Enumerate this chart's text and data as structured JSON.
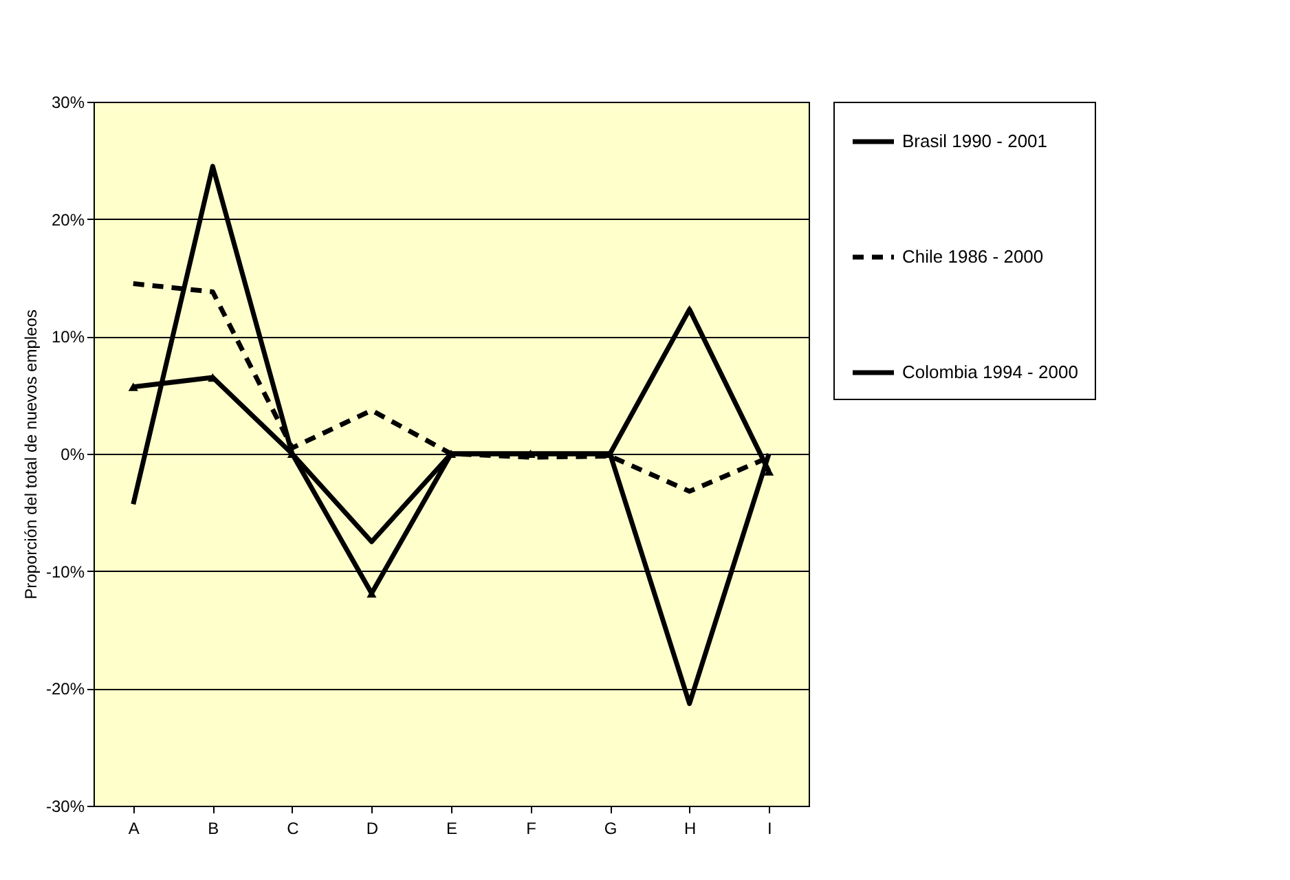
{
  "chart_data": {
    "type": "line",
    "ylabel": "Proporción del total de nuevos empleos",
    "categories": [
      "A",
      "B",
      "C",
      "D",
      "E",
      "F",
      "G",
      "H",
      "I"
    ],
    "series": [
      {
        "name": "Brasil 1990 - 2001",
        "color": "#000000",
        "line_style": "solid",
        "marker": "none",
        "values": [
          -4.3,
          24.5,
          0,
          -7.5,
          0,
          0,
          0,
          -21.3,
          0
        ]
      },
      {
        "name": "Chile 1986 - 2000",
        "color": "#000000",
        "line_style": "dashed",
        "marker": "none",
        "values": [
          14.5,
          13.8,
          0.5,
          3.7,
          0,
          -0.3,
          -0.2,
          -3.2,
          -0.3
        ]
      },
      {
        "name": "Colombia 1994 - 2000",
        "color": "#000000",
        "line_style": "solid",
        "marker": "triangle",
        "values": [
          5.7,
          6.5,
          0,
          -11.9,
          0,
          0,
          0,
          12.3,
          -1.5
        ]
      }
    ],
    "ylim": [
      -30,
      30
    ],
    "yticks": [
      {
        "value": -30,
        "label": "-30%"
      },
      {
        "value": -20,
        "label": "-20%"
      },
      {
        "value": -10,
        "label": "-10%"
      },
      {
        "value": 0,
        "label": "0%"
      },
      {
        "value": 10,
        "label": "10%"
      },
      {
        "value": 20,
        "label": "20%"
      },
      {
        "value": 30,
        "label": "30%"
      }
    ],
    "grid": "y",
    "legend": "right"
  }
}
